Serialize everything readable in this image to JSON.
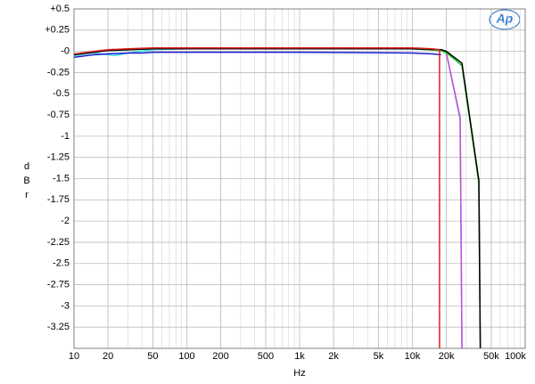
{
  "chart_data": {
    "type": "line",
    "logo": "Ap",
    "xlabel": "Hz",
    "ylabel": "dBr",
    "xscale": "log",
    "grid": true,
    "xlim": [
      10,
      100000
    ],
    "ylim": [
      -3.5,
      0.5
    ],
    "xticks": [
      10,
      20,
      50,
      100,
      200,
      500,
      {
        "value": 1000,
        "label": "1k"
      },
      {
        "value": 2000,
        "label": "2k"
      },
      {
        "value": 5000,
        "label": "5k"
      },
      {
        "value": 10000,
        "label": "10k"
      },
      {
        "value": 20000,
        "label": "20k"
      },
      {
        "value": 50000,
        "label": "50k"
      },
      {
        "value": 100000,
        "label": "100k"
      }
    ],
    "yticks": [
      {
        "value": 0.5,
        "label": "+0.5"
      },
      {
        "value": 0.25,
        "label": "+0.25"
      },
      {
        "value": 0,
        "label": "-0"
      },
      -0.25,
      -0.5,
      -0.75,
      -1,
      -1.25,
      -1.5,
      -1.75,
      -2,
      -2.25,
      -2.5,
      -2.75,
      -3,
      -3.25
    ],
    "series": [
      {
        "color": "#33e0e0",
        "x": [
          10,
          15,
          20,
          23,
          30,
          50,
          100,
          1000,
          10000,
          18000,
          20000,
          26500,
          27500
        ],
        "values": [
          -0.05,
          -0.02,
          -0.04,
          -0.05,
          -0.02,
          0.02,
          0.03,
          0.03,
          0.03,
          0.01,
          -0.02,
          -0.8,
          -3.5
        ]
      },
      {
        "color": "#cc44dd",
        "x": [
          10,
          15,
          20,
          30,
          50,
          100,
          1000,
          10000,
          18000,
          20000,
          26500,
          27500
        ],
        "values": [
          -0.04,
          -0.01,
          0.01,
          0.02,
          0.03,
          0.03,
          0.03,
          0.03,
          0.01,
          -0.02,
          -0.78,
          -3.5
        ]
      },
      {
        "color": "#22cc22",
        "x": [
          10,
          20,
          50,
          100,
          1000,
          10000,
          18000,
          20000,
          24000,
          27500,
          38800,
          40000
        ],
        "values": [
          -0.04,
          0.01,
          0.03,
          0.03,
          0.03,
          0.03,
          0.01,
          -0.02,
          -0.1,
          -0.17,
          -1.55,
          -3.5
        ]
      },
      {
        "color": "#000000",
        "x": [
          10,
          20,
          50,
          100,
          1000,
          10000,
          18000,
          20000,
          27500,
          38800,
          40000
        ],
        "values": [
          -0.04,
          0.01,
          0.03,
          0.03,
          0.03,
          0.03,
          0.02,
          0.0,
          -0.14,
          -1.52,
          -3.5
        ]
      },
      {
        "color": "#1a1acc",
        "x": [
          10,
          15,
          20,
          30,
          40,
          50,
          70,
          100,
          1000,
          10000,
          15000,
          18000
        ],
        "values": [
          -0.07,
          -0.04,
          -0.03,
          -0.02,
          -0.02,
          -0.01,
          -0.01,
          -0.01,
          -0.01,
          -0.02,
          -0.03,
          -0.04
        ]
      },
      {
        "color": "#e02020",
        "x": [
          10,
          15,
          20,
          30,
          50,
          100,
          1000,
          10000,
          15000,
          17400,
          17400
        ],
        "values": [
          -0.03,
          0,
          0.02,
          0.03,
          0.04,
          0.04,
          0.04,
          0.04,
          0.03,
          0.02,
          -3.5
        ]
      }
    ]
  }
}
